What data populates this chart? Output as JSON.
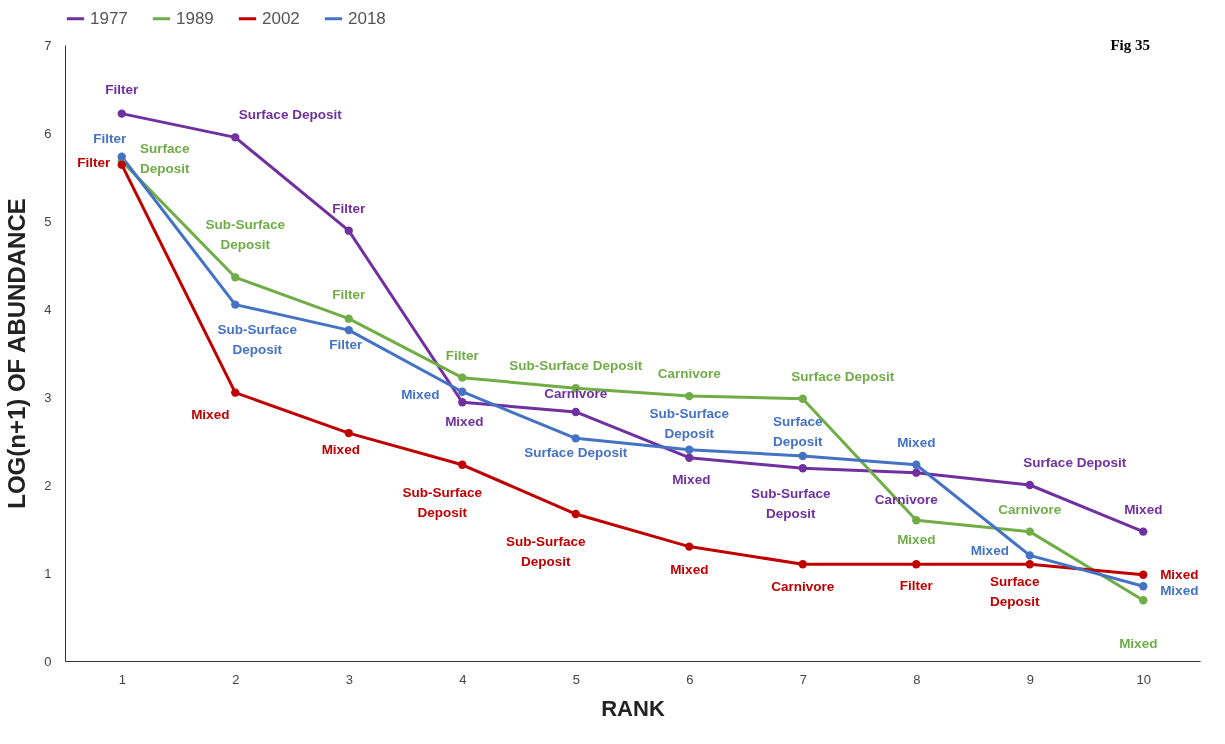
{
  "chart_data": {
    "type": "line",
    "xlabel": "RANK",
    "ylabel": "LOG(n+1) OF ABUNDANCE",
    "categories": [
      "1",
      "2",
      "3",
      "4",
      "5",
      "6",
      "7",
      "8",
      "9",
      "10"
    ],
    "series": [
      {
        "name": "1977",
        "color": "#7030a0",
        "values": [
          6.22,
          5.95,
          4.89,
          2.94,
          2.83,
          2.31,
          2.19,
          2.14,
          2.0,
          1.47
        ],
        "value_labels": [
          "Filter",
          "Surface Deposit",
          "Filter",
          "Mixed",
          "Carnivore",
          "Mixed",
          "Sub-Surface Deposit",
          "Carnivore",
          "Surface Deposit",
          "Mixed"
        ]
      },
      {
        "name": "1989",
        "color": "#70ad47",
        "values": [
          5.68,
          4.36,
          3.89,
          3.22,
          3.1,
          3.01,
          2.98,
          1.6,
          1.47,
          0.69
        ],
        "value_labels": [
          "Surface Deposit",
          "Sub-Surface Deposit",
          "Filter",
          "Filter",
          "Sub-Surface Deposit",
          "Carnivore",
          "Surface Deposit",
          "Mixed",
          "Carnivore",
          "Mixed"
        ]
      },
      {
        "name": "2002",
        "color": "#c00000",
        "values": [
          5.64,
          3.05,
          2.59,
          2.23,
          1.67,
          1.3,
          1.1,
          1.1,
          1.1,
          0.98
        ],
        "value_labels": [
          "Filter",
          "Mixed",
          "Mixed",
          "Sub-Surface Deposit",
          "Sub-Surface Deposit",
          "Mixed",
          "Carnivore",
          "Filter",
          "Surface Deposit",
          "Mixed"
        ]
      },
      {
        "name": "2018",
        "color": "#4472c4",
        "values": [
          5.73,
          4.05,
          3.76,
          3.06,
          2.53,
          2.4,
          2.33,
          2.23,
          1.2,
          0.85
        ],
        "value_labels": [
          "Filter",
          "Sub-Surface Deposit",
          "Filter",
          "Mixed",
          "Surface Deposit",
          "Sub-Surface Deposit",
          "Surface Deposit",
          "Mixed",
          "Mixed",
          "Mixed"
        ]
      }
    ],
    "ylim": [
      0,
      7
    ],
    "yticks": [
      0,
      1,
      2,
      3,
      4,
      5,
      6,
      7
    ],
    "grid": false,
    "legend": "top",
    "marker": "circle",
    "line_style": "solid",
    "annotations": [
      "Fig 35"
    ]
  }
}
